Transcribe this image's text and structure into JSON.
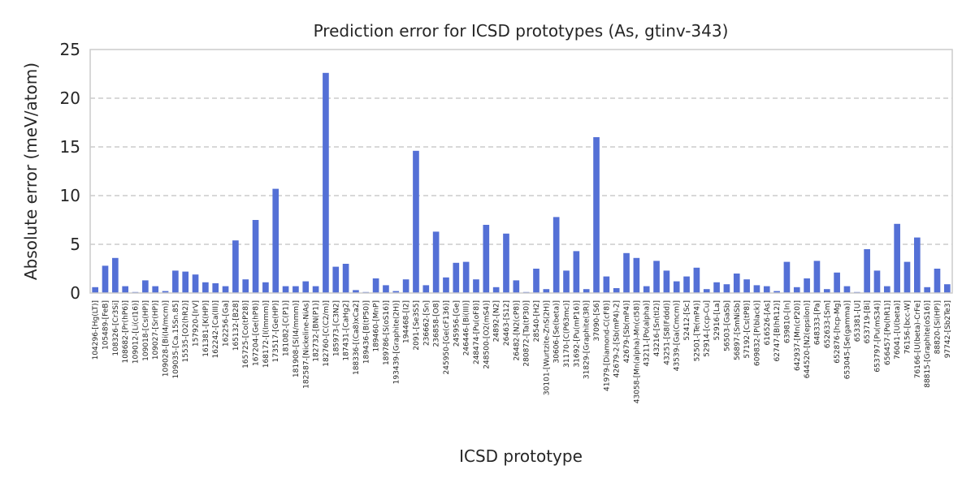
{
  "chart_data": {
    "type": "bar",
    "title": "Prediction error for ICSD prototypes (As, gtinv-343)",
    "xlabel": "ICSD prototype",
    "ylabel": "Absolute error (meV/atom)",
    "ylim": [
      0,
      25
    ],
    "yticks": [
      "0",
      "5",
      "10",
      "15",
      "20",
      "25"
    ],
    "grid": "horizontal dashed",
    "bar_color": "#5470d6",
    "categories": [
      "104296-[Hg(LT)]",
      "105489-[FeB]",
      "108326-[Cr3Si]",
      "108682-[Pr(hP6)]",
      "109012-[Li(cI16)]",
      "109018-[Cs(HP)]",
      "109027-[Sr(HP)]",
      "109028-[Bi(I4/mcm)]",
      "109035-[Ca.15Sn.85]",
      "15535-[O2(hR2)]",
      "157920-[IrV]",
      "161381-[K(HP)]",
      "162242-[Ca(III)]",
      "162256-[Ga]",
      "165132-[B28]",
      "165725-[Co(tP28)]",
      "167204-[Ge(hP8)]",
      "168172-[I(Immm)]",
      "173517-[Ge(HP)]",
      "181082-[C(P1)]",
      "181908-[S(I4/mmm)]",
      "182587-[Nickeline-NiAs]",
      "182732-[BN(P1)]",
      "182760-[C(C2/m)]",
      "185973-[C3N2]",
      "187431-[CaHg2]",
      "188336-[(Ca8)xCa2]",
      "189436-[B(tP50)]",
      "189460-[MnP]",
      "189786-[S(oS16)]",
      "193439-[Graphite(2H)]",
      "194468-[I2]",
      "2091-[Se3S5]",
      "236662-[Sn]",
      "236858-[O8]",
      "245950-[Ge(cF136)]",
      "245956-[Ge]",
      "246446-[Bi(III)]",
      "248474-[Pu(oF8)]",
      "248500-[O2(mS4)]",
      "24892-[N2]",
      "26463-[S12]",
      "26482-[N2(cP8)]",
      "280872-[Ta(tP30)]",
      "28540-[H2]",
      "30101-[Wurtzite-ZnS(2H)]",
      "30606-[Se(beta)]",
      "31170-[C(P63mc)]",
      "31692-[Pu(mP16)]",
      "31829-[Graphite(3R)]",
      "37090-[S6]",
      "41979-[Diamond-C(cF8)]",
      "42679-2-[Sb(mP4)-2]",
      "42679-[Sb(mP4)]",
      "43058-[Mn(alpha)-Mn(cI58)]",
      "43211-[Po(alpha)]",
      "43216-[Sn(tI2)]",
      "43251-[S8(Fddd)]",
      "43539-[Ga(Cmcm)]",
      "52412-[Sc]",
      "52501-[Te(mP4)]",
      "52914-[ccp-Cu]",
      "52916-[La]",
      "56503-[GaSb]",
      "56897-[SmNiSb]",
      "57192-[Cs(tP8)]",
      "609832-[P(black)]",
      "616526-[As]",
      "62747-[B(hR12)]",
      "639810-[In]",
      "642937-[Mn(cP20)]",
      "644520-[N2(epsilon)]",
      "648333-[Pa]",
      "652633-[Sm]",
      "652876-[hcp-Mg]",
      "653045-[Se(gamma)]",
      "653381-[U]",
      "653719-[Bi]",
      "653797-[Pu(mS34)]",
      "656457-[Po(hR1)]",
      "76041-[U(beta)]",
      "76156-[bcc-W]",
      "76166-[U(beta)-CrFe]",
      "88815-[Graphite(oS16)]",
      "88820-[Si(HP)]",
      "97742-[Sb2Te3]"
    ],
    "values": [
      0.6,
      2.8,
      3.6,
      0.7,
      0.1,
      1.3,
      0.7,
      0.2,
      2.3,
      2.2,
      1.9,
      1.1,
      1.0,
      0.7,
      5.4,
      1.4,
      7.5,
      1.1,
      10.7,
      0.7,
      0.7,
      1.2,
      0.7,
      22.6,
      2.7,
      3.0,
      0.3,
      0.1,
      1.5,
      0.8,
      0.2,
      1.4,
      14.6,
      0.8,
      6.3,
      1.6,
      3.1,
      3.2,
      1.4,
      7.0,
      0.6,
      6.1,
      1.3,
      0.1,
      2.5,
      0.4,
      7.8,
      2.3,
      4.3,
      0.4,
      16.0,
      1.7,
      0.5,
      4.1,
      3.6,
      0.7,
      3.3,
      2.3,
      1.2,
      1.7,
      2.6,
      0.4,
      1.1,
      0.9,
      2.0,
      1.4,
      0.8,
      0.7,
      0.2,
      3.2,
      0.6,
      1.5,
      3.3,
      0.4,
      2.1,
      0.7,
      0.1,
      4.5,
      2.3,
      0.7,
      7.1,
      3.2,
      5.7,
      0.6,
      2.5,
      0.9
    ]
  }
}
